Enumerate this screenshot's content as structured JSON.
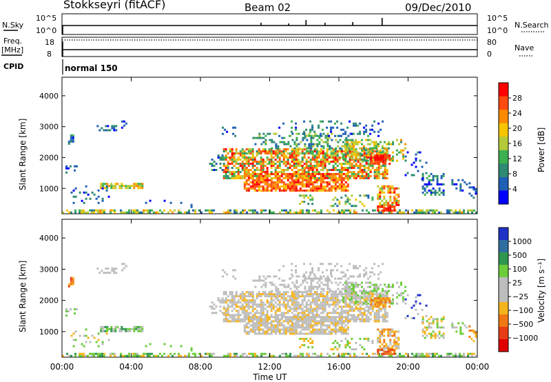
{
  "header": {
    "station": "Stokkseyri (fitACF)",
    "beam": "Beam 02",
    "date": "09/Dec/2010"
  },
  "top_panels": {
    "nsky_label": "N.Sky",
    "nsky_ticks": [
      "10^5",
      "10^0"
    ],
    "nsearch_label": "N.Search",
    "nsearch_ticks": [
      "10^5",
      "10^0"
    ],
    "freq_label": "Freq.",
    "freq_unit": "[MHz]",
    "freq_ticks": [
      "18",
      "8"
    ],
    "nave_label": "Nave",
    "nave_ticks": [
      "80",
      "0"
    ],
    "cpid_label": "CPID",
    "cpid_value": "normal 150"
  },
  "chart_data": [
    {
      "type": "heatmap",
      "panel": "power",
      "ylabel": "Slant Range [km]",
      "y_ticks": [
        "4000",
        "3000",
        "2000",
        "1000"
      ],
      "ylim": [
        180,
        4600
      ],
      "xlim_hours": [
        0,
        24
      ],
      "colorbar_label": "Power [dB]",
      "colorbar_ticks": [
        "28",
        "24",
        "20",
        "16",
        "12",
        "8",
        "4"
      ],
      "colorbar_colors": [
        "#ff0000",
        "#ff4a10",
        "#ff8a00",
        "#f7c400",
        "#b5c93a",
        "#3cb050",
        "#2e8a72",
        "#1f5fb4",
        "#0000ff"
      ]
    },
    {
      "type": "heatmap",
      "panel": "velocity",
      "ylabel": "Slant Range [km]",
      "y_ticks": [
        "4000",
        "3000",
        "2000",
        "1000"
      ],
      "ylim": [
        180,
        4600
      ],
      "xlim_hours": [
        0,
        24
      ],
      "xlabel": "Time UT",
      "x_ticks": [
        "00:00",
        "04:00",
        "08:00",
        "12:00",
        "16:00",
        "20:00",
        "00:00"
      ],
      "colorbar_label": "Velocity [m s⁻¹]",
      "colorbar_ticks": [
        "1000",
        "500",
        "100",
        "25",
        "−25",
        "−100",
        "−500",
        "−1000"
      ],
      "colorbar_colors": [
        "#1e32c8",
        "#2f6fa0",
        "#2e9650",
        "#6ccc3a",
        "#bdbdbd",
        "#bdbdbd",
        "#f5b41e",
        "#f07814",
        "#e83c14",
        "#e00000"
      ]
    }
  ]
}
